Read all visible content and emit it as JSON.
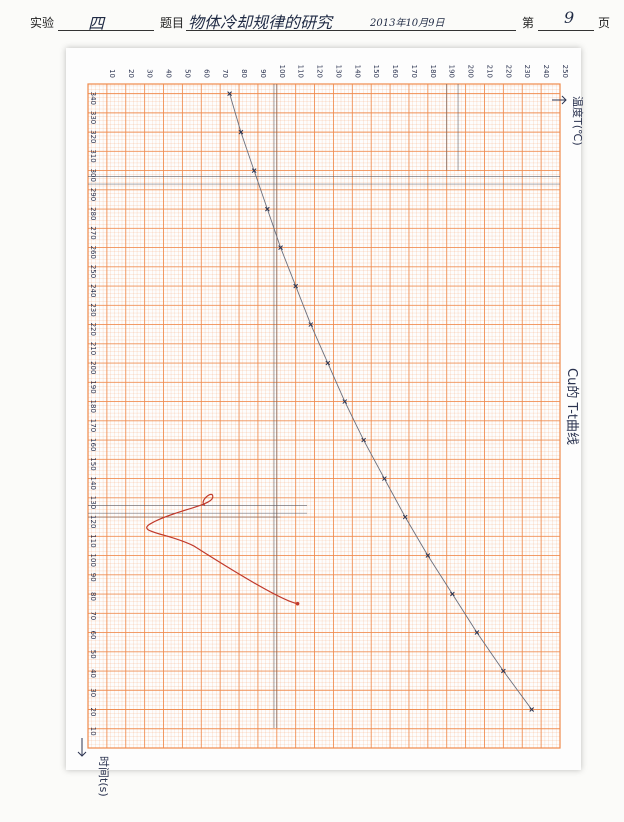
{
  "header": {
    "experiment_label": "实验",
    "experiment_no": "四",
    "title_label": "题目",
    "title_value": "物体冷却规律的研究",
    "date_value": "2013年10月9日",
    "page_label_before": "第",
    "page_no": "9",
    "page_label_after": "页"
  },
  "colors": {
    "grid": "#f08a4b",
    "curve": "#c0392b",
    "pencil": "#555a66",
    "ink": "#2b3350"
  },
  "chart_data": {
    "type": "scatter",
    "title": "Cu的 T-t曲线",
    "ylabel": "温度T(℃)",
    "xlabel": "时间t(s)",
    "t_ticks": [
      10,
      20,
      30,
      40,
      50,
      60,
      70,
      80,
      90,
      100,
      110,
      120,
      130,
      140,
      150,
      160,
      170,
      180,
      190,
      200,
      210,
      220,
      230,
      240,
      250,
      260,
      270,
      280,
      290,
      300,
      310,
      320,
      330,
      340
    ],
    "T_ticks": [
      10,
      20,
      30,
      40,
      50,
      60,
      70,
      80,
      90,
      100,
      110,
      120,
      130,
      140,
      150,
      160,
      170,
      180,
      190,
      200,
      210,
      220,
      230,
      240,
      250
    ],
    "tlim": [
      0,
      345
    ],
    "Tlim": [
      0,
      250
    ],
    "grid": true,
    "cooling_points": [
      {
        "t": 20,
        "T": 235
      },
      {
        "t": 40,
        "T": 220
      },
      {
        "t": 60,
        "T": 206
      },
      {
        "t": 80,
        "T": 193
      },
      {
        "t": 100,
        "T": 180
      },
      {
        "t": 120,
        "T": 168
      },
      {
        "t": 140,
        "T": 157
      },
      {
        "t": 160,
        "T": 146
      },
      {
        "t": 180,
        "T": 136
      },
      {
        "t": 200,
        "T": 127
      },
      {
        "t": 220,
        "T": 118
      },
      {
        "t": 240,
        "T": 110
      },
      {
        "t": 260,
        "T": 102
      },
      {
        "t": 280,
        "T": 95
      },
      {
        "t": 300,
        "T": 88
      },
      {
        "t": 320,
        "T": 81
      },
      {
        "t": 340,
        "T": 75
      }
    ]
  }
}
